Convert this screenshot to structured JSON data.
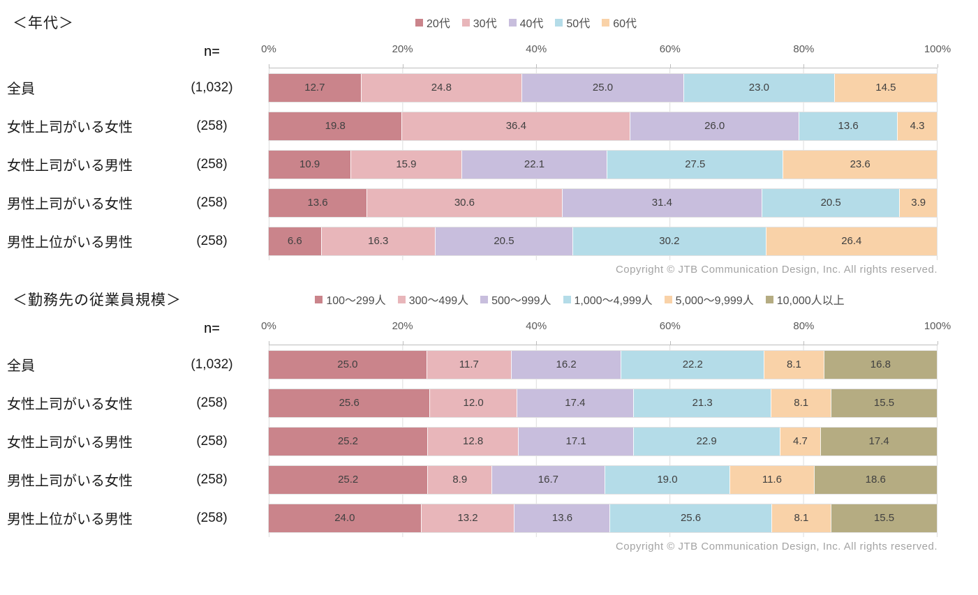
{
  "texts": {
    "n_equals": "n=",
    "copyright": "Copyright © JTB Communication Design, Inc. All rights reserved."
  },
  "chart_data": [
    {
      "type": "bar",
      "subtype": "stacked-horizontal",
      "title": "＜年代＞",
      "unit": "%",
      "xlim": [
        0,
        100
      ],
      "x_ticks": [
        "0%",
        "20%",
        "40%",
        "60%",
        "80%",
        "100%"
      ],
      "grid": true,
      "legend_position": "top-center",
      "categories": [
        "全員",
        "女性上司がいる女性",
        "女性上司がいる男性",
        "男性上司がいる女性",
        "男性上位がいる男性"
      ],
      "n_values": [
        "(1,032)",
        "(258)",
        "(258)",
        "(258)",
        "(258)"
      ],
      "series": [
        {
          "name": "20代",
          "color": "#ca848b",
          "values": [
            12.7,
            19.8,
            10.9,
            13.6,
            6.6
          ]
        },
        {
          "name": "30代",
          "color": "#e8b6ba",
          "values": [
            24.8,
            36.4,
            15.9,
            30.6,
            16.3
          ]
        },
        {
          "name": "40代",
          "color": "#c8bedd",
          "values": [
            25.0,
            26.0,
            22.1,
            31.4,
            20.5
          ]
        },
        {
          "name": "50代",
          "color": "#b4dce8",
          "values": [
            23.0,
            13.6,
            27.5,
            20.5,
            30.2
          ]
        },
        {
          "name": "60代",
          "color": "#f9d2a8",
          "values": [
            14.5,
            4.3,
            23.6,
            3.9,
            26.4
          ]
        }
      ]
    },
    {
      "type": "bar",
      "subtype": "stacked-horizontal",
      "title": "＜勤務先の従業員規模＞",
      "unit": "%",
      "xlim": [
        0,
        100
      ],
      "x_ticks": [
        "0%",
        "20%",
        "40%",
        "60%",
        "80%",
        "100%"
      ],
      "grid": true,
      "legend_position": "top-center",
      "categories": [
        "全員",
        "女性上司がいる女性",
        "女性上司がいる男性",
        "男性上司がいる女性",
        "男性上位がいる男性"
      ],
      "n_values": [
        "(1,032)",
        "(258)",
        "(258)",
        "(258)",
        "(258)"
      ],
      "series": [
        {
          "name": "100～299人",
          "color": "#ca848b",
          "values": [
            25.0,
            25.6,
            25.2,
            25.2,
            24.0
          ]
        },
        {
          "name": "300～499人",
          "color": "#e8b6ba",
          "values": [
            11.7,
            12.0,
            12.8,
            8.9,
            13.2
          ]
        },
        {
          "name": "500～999人",
          "color": "#c8bedd",
          "values": [
            16.2,
            17.4,
            17.1,
            16.7,
            13.6
          ]
        },
        {
          "name": "1,000～4,999人",
          "color": "#b4dce8",
          "values": [
            22.2,
            21.3,
            22.9,
            19.0,
            25.6
          ]
        },
        {
          "name": "5,000～9,999人",
          "color": "#f9d2a8",
          "values": [
            8.1,
            8.1,
            4.7,
            11.6,
            8.1
          ]
        },
        {
          "name": "10,000人以上",
          "color": "#b5ac82",
          "values": [
            16.8,
            15.5,
            17.4,
            18.6,
            15.5
          ]
        }
      ]
    }
  ]
}
